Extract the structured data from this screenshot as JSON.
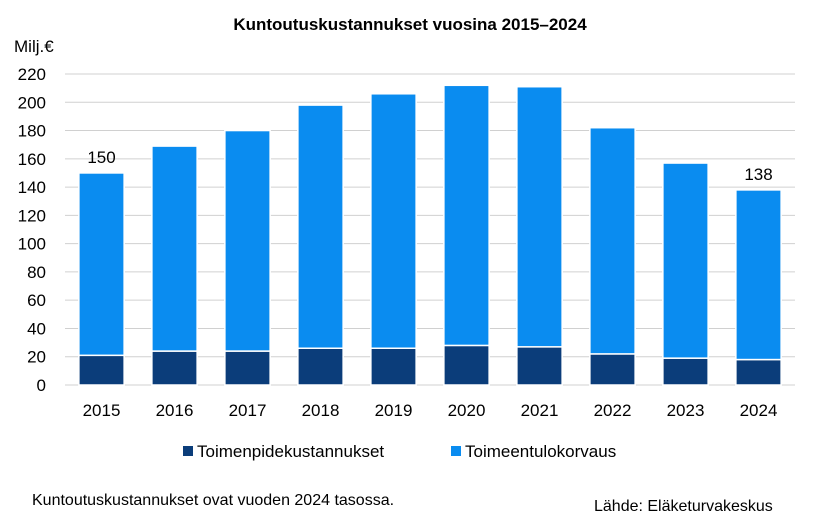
{
  "chart_data": {
    "type": "bar",
    "stacked": true,
    "title": "Kuntoutuskustannukset vuosina 2015–2024",
    "ylabel": "Milj.€",
    "xlabel": "",
    "categories": [
      "2015",
      "2016",
      "2017",
      "2018",
      "2019",
      "2020",
      "2021",
      "2022",
      "2023",
      "2024"
    ],
    "series": [
      {
        "name": "Toimenpidekustannukset",
        "color": "#0b3d7a",
        "values": [
          21,
          24,
          24,
          26,
          26,
          28,
          27,
          22,
          19,
          18
        ]
      },
      {
        "name": "Toimeentulokorvaus",
        "color": "#0a8cf0",
        "values": [
          129,
          145,
          156,
          172,
          180,
          184,
          184,
          160,
          138,
          120
        ]
      }
    ],
    "data_labels": [
      {
        "category": "2015",
        "text": "150"
      },
      {
        "category": "2024",
        "text": "138"
      }
    ],
    "ylim": [
      0,
      220
    ],
    "yticks": [
      0,
      20,
      40,
      60,
      80,
      100,
      120,
      140,
      160,
      180,
      200,
      220
    ],
    "grid": true,
    "legend_position": "bottom"
  },
  "footer": {
    "note": "Kuntoutuskustannukset ovat vuoden 2024 tasossa.",
    "source": "Lähde: Eläketurvakeskus"
  }
}
